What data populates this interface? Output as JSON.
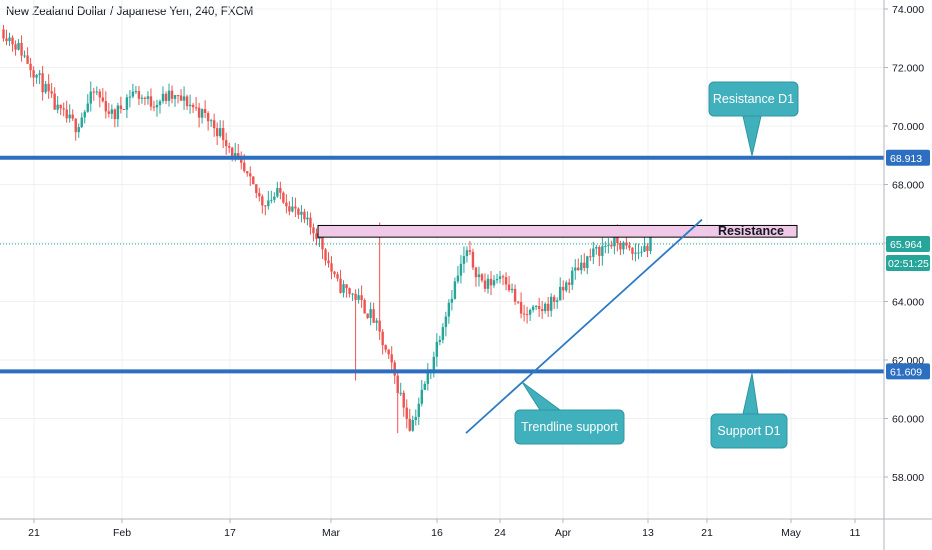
{
  "chart_data": {
    "type": "candlestick",
    "title": "New Zealand Dollar / Japanese Yen, 240, FXCM",
    "ylim": [
      56.2,
      74.4
    ],
    "y_ticks": [
      "74.000",
      "72.000",
      "70.000",
      "68.000",
      "66.000",
      "64.000",
      "62.000",
      "60.000",
      "58.000"
    ],
    "x_ticks": [
      "21",
      "Feb",
      "17",
      "Mar",
      "16",
      "24",
      "Apr",
      "13",
      "21",
      "May",
      "11"
    ],
    "last_price": "65.964",
    "countdown": "02:51:25",
    "levels": [
      {
        "label": "Resistance D1",
        "price": "68.913"
      },
      {
        "label": "Support D1",
        "price": "61.609"
      }
    ],
    "zone": {
      "label": "Resistance",
      "low": 66.2,
      "high": 66.6
    },
    "trendline": {
      "label": "Trendline support",
      "from": 59.5,
      "to": 66.8
    },
    "price_path": [
      73.3,
      72.6,
      71.6,
      70.5,
      70.0,
      71.2,
      70.3,
      71.2,
      70.8,
      71.0,
      70.8,
      70.3,
      69.6,
      68.4,
      67.4,
      67.7,
      66.9,
      66.3,
      64.6,
      64.2,
      63.4,
      61.7,
      59.7,
      61.6,
      63.9,
      65.7,
      64.5,
      65.0,
      63.5,
      63.7,
      64.2,
      65.2,
      65.7,
      66.1,
      65.6,
      66.0
    ]
  },
  "colors": {
    "up": "#26a69a",
    "down": "#ef5350",
    "level": "#2c6fc1",
    "callout": "#3fb0bc",
    "zone": "#f0c8e8"
  }
}
